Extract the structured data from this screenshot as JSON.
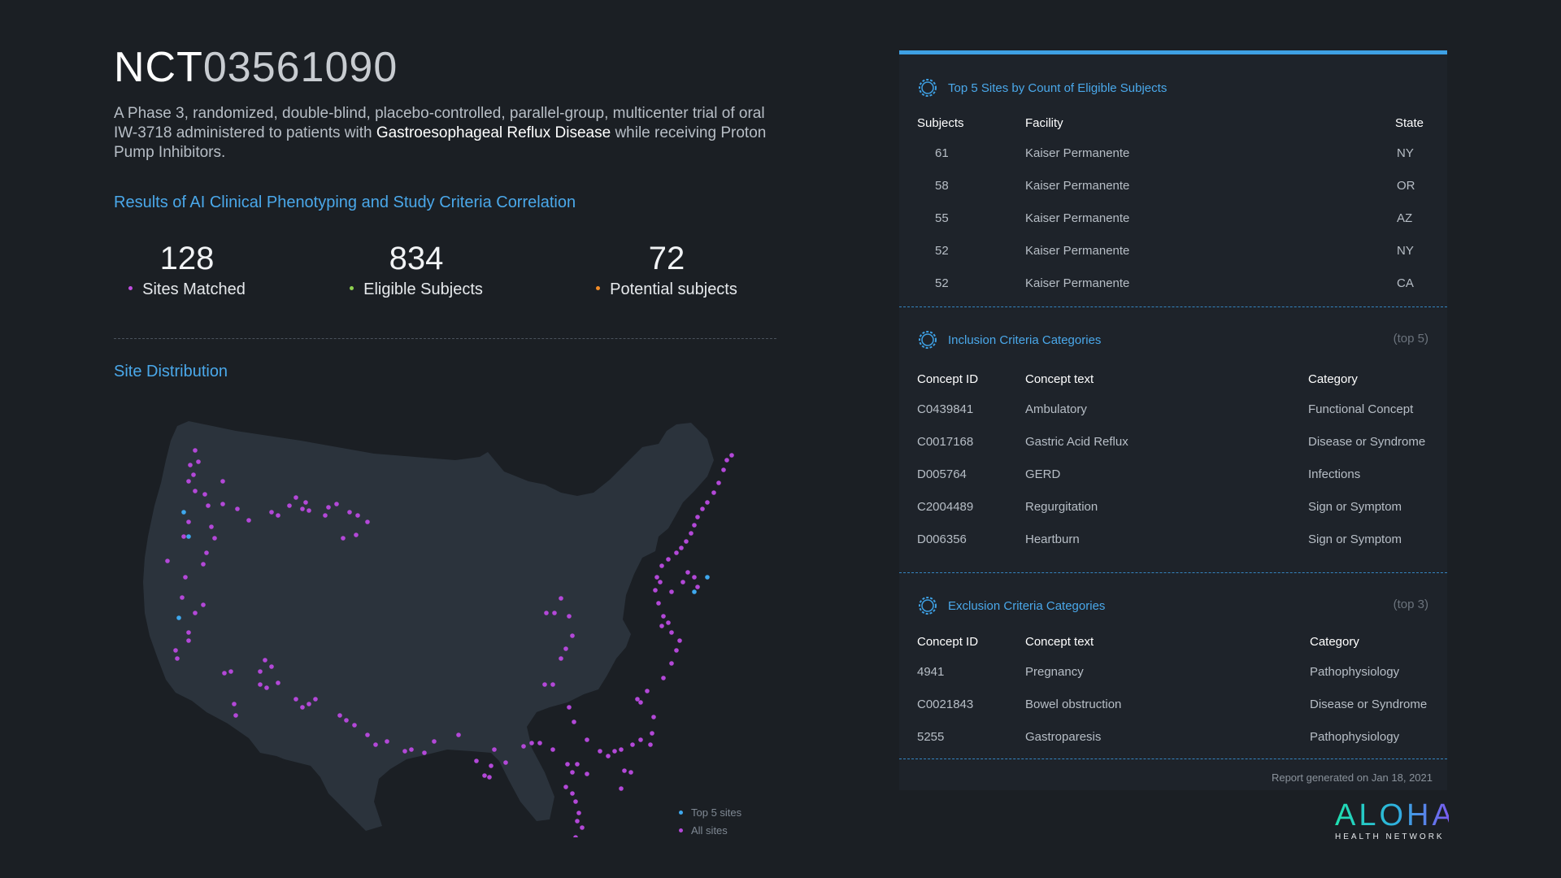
{
  "header": {
    "id_prefix": "NCT",
    "id_number": "03561090",
    "desc_part1": "A Phase 3, randomized, double-blind, placebo-controlled, parallel-group, multicenter trial of oral IW-3718 administered to patients with ",
    "desc_bold": "Gastroesophageal Reflux Disease",
    "desc_part2": " while receiving Proton Pump Inhibitors."
  },
  "results": {
    "title": "Results of AI Clinical Phenotyping and Study Criteria Correlation",
    "stats": [
      {
        "value": "128",
        "label": "Sites Matched",
        "color": "#c04ddf"
      },
      {
        "value": "834",
        "label": "Eligible Subjects",
        "color": "#8fd14f"
      },
      {
        "value": "72",
        "label": "Potential subjects",
        "color": "#f28c28"
      }
    ]
  },
  "site_distribution": {
    "title": "Site Distribution",
    "legend": [
      {
        "label": "Top 5 sites",
        "color": "#3ea8ee"
      },
      {
        "label": "All sites",
        "color": "#b348d8"
      }
    ]
  },
  "top_sites": {
    "title": "Top 5 Sites by Count of Eligible Subjects",
    "headers": [
      "Subjects",
      "Facility",
      "State"
    ],
    "rows": [
      [
        "61",
        "Kaiser Permanente",
        "NY"
      ],
      [
        "58",
        "Kaiser Permanente",
        "OR"
      ],
      [
        "55",
        "Kaiser Permanente",
        "AZ"
      ],
      [
        "52",
        "Kaiser Permanente",
        "NY"
      ],
      [
        "52",
        "Kaiser Permanente",
        "CA"
      ]
    ]
  },
  "inclusion": {
    "title": "Inclusion Criteria Categories",
    "note": "(top 5)",
    "headers": [
      "Concept ID",
      "Concept text",
      "Category"
    ],
    "rows": [
      [
        "C0439841",
        "Ambulatory",
        "Functional Concept"
      ],
      [
        "C0017168",
        "Gastric Acid Reflux",
        "Disease or Syndrome"
      ],
      [
        "D005764",
        "GERD",
        "Infections"
      ],
      [
        "C2004489",
        "Regurgitation",
        "Sign or Symptom"
      ],
      [
        "D006356",
        "Heartburn",
        "Sign or Symptom"
      ]
    ]
  },
  "exclusion": {
    "title": "Exclusion Criteria Categories",
    "note": "(top 3)",
    "headers": [
      "Concept ID",
      "Concept text",
      "Category"
    ],
    "rows": [
      [
        "4941",
        "Pregnancy",
        "Pathophysiology"
      ],
      [
        "C0021843",
        "Bowel obstruction",
        "Disease or Syndrome"
      ],
      [
        "5255",
        "Gastroparesis",
        "Pathophysiology"
      ]
    ]
  },
  "footer": {
    "report": "Report generated on Jan 18, 2021"
  },
  "logo": {
    "word": "ALOHA",
    "sub": "HEALTH NETWORK"
  }
}
